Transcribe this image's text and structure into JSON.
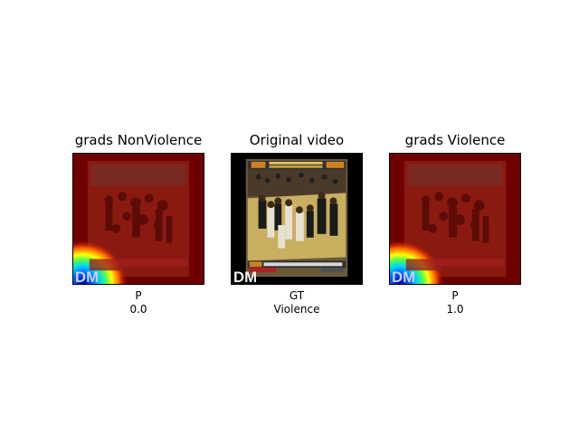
{
  "panels": [
    {
      "title": "grads NonViolence",
      "caption_line1": "P",
      "caption_line2": "0.0",
      "overlay": "gradcam-heatmap",
      "watermark": "DM"
    },
    {
      "title": "Original video",
      "caption_line1": "GT",
      "caption_line2": "Violence",
      "overlay": "none",
      "watermark": "DM"
    },
    {
      "title": "grads Violence",
      "caption_line1": "P",
      "caption_line2": "1.0",
      "overlay": "gradcam-heatmap",
      "watermark": "DM"
    }
  ],
  "colors": {
    "heat_low": "#0000b0",
    "heat_mid": "#ffff00",
    "heat_high": "#8b0000",
    "court_floor": "#c8b060",
    "scoreboard_orange": "#d08020",
    "ticker_bar": "#404040"
  }
}
